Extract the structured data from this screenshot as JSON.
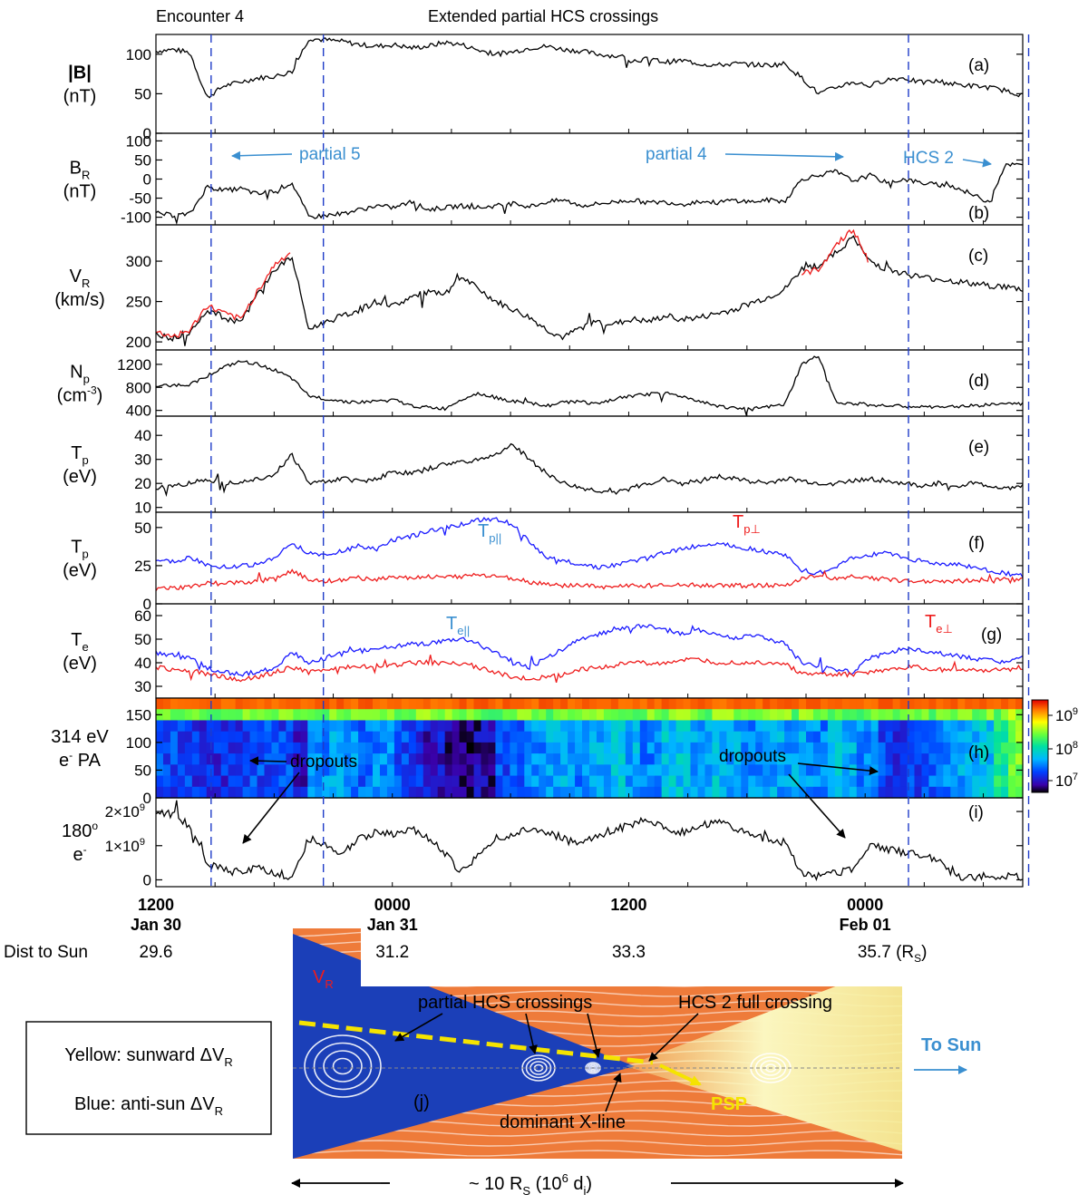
{
  "header": {
    "left": "Encounter 4",
    "center": "Extended partial HCS crossings"
  },
  "colors": {
    "black": "#000000",
    "blue_trace": "#1a1aff",
    "red_trace": "#ee1c1c",
    "annot_blue": "#3a8fd0",
    "dash_blue": "#1f3cc8",
    "sheet_orange": "#ee7b3a",
    "sheet_blue": "#1b3fb8",
    "sheet_yellow": "#f5ef9a",
    "hcs_dash_yellow": "#f5e400"
  },
  "chart_data": {
    "type": "line",
    "time_axis": {
      "start": "Jan 30 12:00",
      "end": "Feb 01 08:00",
      "ticks": [
        {
          "time": "1200",
          "date": "Jan 30",
          "dist": "29.6"
        },
        {
          "time": "0000",
          "date": "Jan 31",
          "dist": "31.2"
        },
        {
          "time": "1200",
          "date": "",
          "dist": "33.3"
        },
        {
          "time": "0000",
          "date": "Feb 01",
          "dist": "35.7 (R",
          "dist_sub": "S",
          "dist_close": ")"
        }
      ],
      "dist_label": "Dist to Sun"
    },
    "dashed_markers_hours": [
      2.8,
      8.5,
      38.2,
      44.3
    ],
    "panels": [
      {
        "id": "a",
        "label": "(a)",
        "ylabel_main": "|B|",
        "ylabel_sub": "",
        "ylabel_sup": "",
        "unit": "(nT)",
        "unit_sup": "",
        "ylim": [
          0,
          125
        ],
        "ticks": [
          0,
          50,
          100
        ],
        "series": [
          {
            "color": "black",
            "values": [
              104,
              106,
              102,
              45,
              60,
              65,
              70,
              72,
              78,
              120,
              118,
              116,
              112,
              110,
              112,
              108,
              110,
              115,
              112,
              105,
              100,
              103,
              108,
              110,
              106,
              104,
              100,
              98,
              92,
              94,
              90,
              92,
              88,
              86,
              88,
              87,
              86,
              88,
              70,
              50,
              58,
              65,
              60,
              68,
              70,
              64,
              66,
              62,
              60,
              58,
              54,
              48
            ]
          }
        ]
      },
      {
        "id": "b",
        "label": "(b)",
        "ylabel_main": "B",
        "ylabel_sub": "R",
        "ylabel_sup": "",
        "unit": "(nT)",
        "unit_sup": "",
        "ylim": [
          -120,
          120
        ],
        "ticks": [
          -100,
          -50,
          0,
          50,
          100
        ],
        "series": [
          {
            "color": "black",
            "values": [
              -90,
              -95,
              -92,
              -20,
              -30,
              -25,
              -40,
              -30,
              -10,
              -100,
              -95,
              -90,
              -80,
              -70,
              -75,
              -60,
              -80,
              -75,
              -70,
              -75,
              -70,
              -65,
              -72,
              -60,
              -55,
              -70,
              -65,
              -60,
              -55,
              -62,
              -60,
              -66,
              -58,
              -62,
              -55,
              -60,
              -55,
              -58,
              0,
              10,
              20,
              -5,
              10,
              -10,
              0,
              -10,
              -15,
              -20,
              -40,
              -60,
              40,
              35
            ]
          }
        ]
      },
      {
        "id": "c",
        "label": "(c)",
        "ylabel_main": "V",
        "ylabel_sub": "R",
        "ylabel_sup": "",
        "unit": "(km/s)",
        "unit_sup": "",
        "ylim": [
          190,
          345
        ],
        "ticks": [
          200,
          250,
          300
        ],
        "series": [
          {
            "color": "black",
            "values": [
              210,
              205,
              212,
              240,
              230,
              225,
              260,
              290,
              305,
              215,
              225,
              232,
              240,
              250,
              245,
              255,
              262,
              258,
              280,
              265,
              250,
              240,
              230,
              215,
              205,
              218,
              225,
              222,
              228,
              225,
              232,
              228,
              230,
              235,
              240,
              248,
              255,
              265,
              290,
              295,
              310,
              330,
              300,
              290,
              285,
              280,
              278,
              275,
              272,
              270,
              268,
              265
            ]
          },
          {
            "color": "red",
            "values": [
              212,
              207,
              214,
              245,
              235,
              228,
              264,
              296,
              312,
              null,
              null,
              null,
              null,
              null,
              null,
              null,
              null,
              null,
              null,
              null,
              null,
              null,
              null,
              null,
              null,
              null,
              null,
              null,
              null,
              null,
              null,
              null,
              null,
              null,
              null,
              null,
              null,
              null,
              284,
              290,
              320,
              340,
              296,
              null,
              null,
              null,
              null,
              null,
              null,
              null,
              null,
              null
            ]
          }
        ]
      },
      {
        "id": "d",
        "label": "(d)",
        "ylabel_main": "N",
        "ylabel_sub": "p",
        "ylabel_sup": "",
        "unit": "(cm",
        "unit_sup": "-3",
        "unit_close": ")",
        "ylim": [
          300,
          1450
        ],
        "ticks": [
          400,
          800,
          1200
        ],
        "series": [
          {
            "color": "black",
            "values": [
              820,
              840,
              850,
              1000,
              1150,
              1250,
              1200,
              1100,
              950,
              650,
              600,
              560,
              540,
              560,
              580,
              480,
              450,
              430,
              600,
              700,
              620,
              560,
              520,
              480,
              540,
              560,
              500,
              600,
              650,
              680,
              700,
              640,
              560,
              480,
              440,
              420,
              460,
              500,
              1200,
              1350,
              550,
              520,
              500,
              480,
              470,
              460,
              450,
              470,
              480,
              500,
              520,
              510
            ]
          }
        ]
      },
      {
        "id": "e",
        "label": "(e)",
        "ylabel_main": "T",
        "ylabel_sub": "p",
        "ylabel_sup": "",
        "unit": "(eV)",
        "unit_sup": "",
        "ylim": [
          8,
          48
        ],
        "ticks": [
          10,
          20,
          30,
          40
        ],
        "series": [
          {
            "color": "black",
            "values": [
              18,
              19,
              20,
              22,
              20,
              21,
              22,
              24,
              32,
              20,
              21,
              22,
              21,
              22,
              25,
              24,
              26,
              28,
              29,
              30,
              32,
              36,
              30,
              24,
              20,
              18,
              17,
              16,
              18,
              20,
              22,
              20,
              21,
              23,
              22,
              21,
              20,
              22,
              21,
              20,
              20,
              21,
              22,
              21,
              20,
              19,
              20,
              19,
              20,
              19,
              18,
              19
            ]
          }
        ]
      },
      {
        "id": "f",
        "label": "(f)",
        "ylabel_main": "T",
        "ylabel_sub": "p",
        "ylabel_sup": "",
        "unit": "(eV)",
        "unit_sup": "",
        "ylim": [
          0,
          60
        ],
        "ticks": [
          0,
          25,
          50
        ],
        "series": [
          {
            "color": "blue",
            "name": "T",
            "values": [
              27,
              28,
              30,
              26,
              24,
              25,
              26,
              30,
              40,
              33,
              32,
              35,
              38,
              36,
              42,
              44,
              48,
              50,
              52,
              55,
              56,
              52,
              40,
              30,
              28,
              26,
              24,
              25,
              28,
              30,
              34,
              36,
              38,
              40,
              38,
              36,
              34,
              32,
              22,
              20,
              24,
              30,
              32,
              34,
              30,
              28,
              26,
              26,
              24,
              22,
              20,
              18
            ]
          },
          {
            "color": "red",
            "name": "T",
            "values": [
              10,
              10,
              11,
              14,
              13,
              14,
              15,
              16,
              22,
              16,
              15,
              16,
              17,
              16,
              18,
              17,
              18,
              17,
              18,
              19,
              18,
              17,
              14,
              13,
              12,
              12,
              11,
              11,
              12,
              12,
              13,
              13,
              12,
              12,
              12,
              12,
              12,
              12,
              17,
              18,
              16,
              18,
              17,
              16,
              15,
              15,
              15,
              15,
              15,
              16,
              16,
              16
            ]
          }
        ]
      },
      {
        "id": "g",
        "label": "(g)",
        "ylabel_main": "T",
        "ylabel_sub": "e",
        "ylabel_sup": "",
        "unit": "(eV)",
        "unit_sup": "",
        "ylim": [
          25,
          65
        ],
        "ticks": [
          30,
          40,
          50,
          60
        ],
        "series": [
          {
            "color": "blue",
            "name": "T",
            "values": [
              44,
              43,
              42,
              38,
              36,
              35,
              36,
              38,
              44,
              40,
              42,
              44,
              45,
              46,
              47,
              48,
              48,
              49,
              50,
              48,
              44,
              40,
              38,
              42,
              46,
              50,
              52,
              54,
              55,
              56,
              54,
              52,
              54,
              52,
              50,
              52,
              50,
              48,
              40,
              38,
              37,
              36,
              42,
              44,
              46,
              45,
              44,
              43,
              42,
              41,
              40,
              42
            ]
          },
          {
            "color": "red",
            "name": "T",
            "values": [
              38,
              37,
              37,
              35,
              34,
              33,
              34,
              36,
              38,
              36,
              37,
              38,
              38,
              39,
              39,
              40,
              40,
              40,
              40,
              38,
              36,
              34,
              33,
              34,
              35,
              37,
              38,
              39,
              40,
              40,
              40,
              41,
              41,
              40,
              40,
              40,
              40,
              40,
              35,
              35,
              35,
              35,
              36,
              37,
              38,
              38,
              37,
              37,
              37,
              37,
              37,
              38
            ]
          }
        ]
      },
      {
        "id": "h",
        "label": "(h)",
        "ylabel_main": "314 eV",
        "ylabel_sub": "",
        "ylabel_sup": "",
        "unit": "e",
        "unit_sup": "-",
        "unit_after": " PA",
        "ylim": [
          0,
          180
        ],
        "ticks": [
          0,
          50,
          100,
          150
        ],
        "type": "heatmap",
        "columns": [
          7.3,
          7.3,
          7.2,
          7.2,
          7.2,
          7.3,
          7.3,
          7.3,
          7.1,
          7.5,
          7.6,
          7.5,
          7.4,
          7.5,
          7.3,
          7.2,
          7.1,
          7.0,
          6.9,
          7.0,
          7.3,
          7.4,
          7.5,
          7.6,
          7.6,
          7.5,
          7.6,
          7.7,
          7.6,
          7.5,
          7.7,
          7.7,
          7.6,
          7.7,
          7.6,
          7.5,
          7.6,
          7.6,
          7.6,
          7.5,
          7.7,
          7.6,
          7.5,
          7.3,
          7.2,
          7.3,
          7.4,
          7.5,
          7.6,
          7.7,
          8.0,
          8.3
        ],
        "colorbar": {
          "ticks": [
            {
              "base": "10",
              "exp": "9"
            },
            {
              "base": "10",
              "exp": "8"
            },
            {
              "base": "10",
              "exp": "7"
            }
          ]
        }
      },
      {
        "id": "i",
        "label": "(i)",
        "ylabel_main": "180",
        "ylabel_sub": "",
        "ylabel_sup": "o",
        "unit": "e",
        "unit_sup": "-",
        "ylim": [
          -0.2,
          2.4
        ],
        "ticks": [
          0,
          1,
          2
        ],
        "tick_labels": [
          "0",
          "1×10",
          "2×10"
        ],
        "tick_sup": [
          "",
          "9",
          "9"
        ],
        "series": [
          {
            "color": "black",
            "values": [
              2.0,
              1.9,
              1.6,
              0.5,
              0.3,
              0.2,
              0.4,
              0.2,
              0.1,
              1.2,
              1.0,
              0.8,
              1.2,
              1.4,
              1.3,
              1.5,
              1.2,
              0.8,
              0.2,
              0.8,
              1.2,
              1.3,
              1.5,
              1.4,
              1.2,
              1.0,
              1.3,
              1.5,
              1.6,
              1.8,
              1.5,
              1.4,
              1.6,
              1.7,
              1.5,
              1.3,
              1.2,
              1.1,
              0.2,
              0.1,
              0.2,
              0.3,
              1.0,
              0.9,
              0.8,
              0.7,
              0.6,
              0.1,
              0.1,
              0.1,
              0.1,
              0.1
            ]
          }
        ]
      }
    ],
    "annotations": {
      "partial5": "partial 5",
      "partial4": "partial 4",
      "hcs2": "HCS 2",
      "dropouts_h1": "dropouts",
      "dropouts_h2": "dropouts",
      "tpar": "T",
      "tpar_sub": "p||",
      "tperp": "T",
      "tperp_sub": "p⊥",
      "tepar": "T",
      "tepar_sub": "e||",
      "teperp": "T",
      "teperp_sub": "e⊥"
    }
  },
  "schematic": {
    "panel_label": "(j)",
    "vr_label": "V",
    "vr_sub": "R",
    "partial_label": "partial HCS crossings",
    "full_label": "HCS 2 full crossing",
    "xline_label": "dominant X-line",
    "psp_label": "PSP",
    "sun_label": "To Sun",
    "legend_yellow": "Yellow: sunward ΔV",
    "legend_blue": "Blue: anti-sun ΔV",
    "legend_sub": "R",
    "scale_label": "~ 10 R",
    "scale_sub": "S",
    "scale_paren": " (10",
    "scale_sup": "6",
    "scale_end": " d",
    "scale_end_sub": "i",
    "scale_close": ")"
  }
}
